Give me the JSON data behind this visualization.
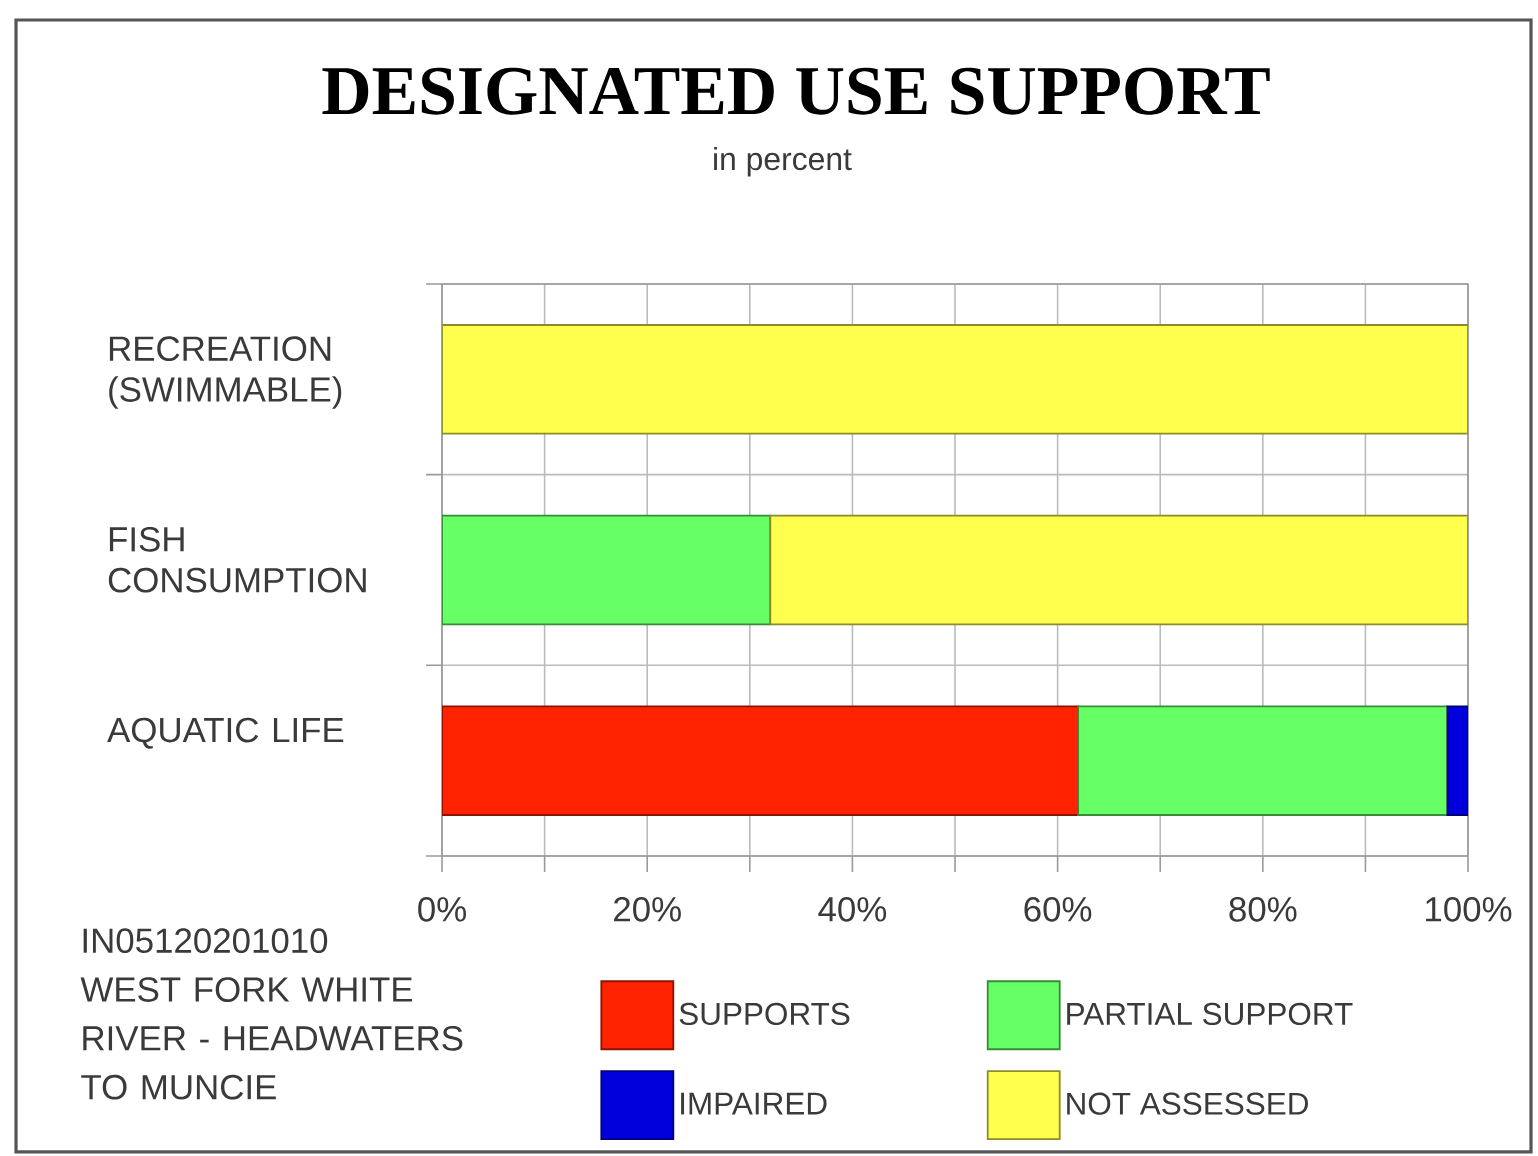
{
  "chart_data": {
    "type": "bar",
    "orientation": "horizontal",
    "stacked": true,
    "title": "DESIGNATED USE SUPPORT",
    "subtitle": "in percent",
    "categories": [
      "RECREATION (SWIMMABLE)",
      "FISH CONSUMPTION",
      "AQUATIC LIFE"
    ],
    "series": [
      {
        "name": "SUPPORTS",
        "color": "#ff2200",
        "values": [
          null,
          null,
          62
        ]
      },
      {
        "name": "PARTIAL SUPPORT",
        "color": "#66ff66",
        "values": [
          null,
          32,
          36
        ]
      },
      {
        "name": "IMPAIRED",
        "color": "#0000dd",
        "values": [
          null,
          null,
          2
        ]
      },
      {
        "name": "NOT ASSESSED",
        "color": "#ffff4d",
        "values": [
          100,
          68,
          null
        ]
      }
    ],
    "xlim": [
      0,
      100
    ],
    "xticks": [
      {
        "value": 0,
        "label": "0%"
      },
      {
        "value": 10,
        "label": null
      },
      {
        "value": 20,
        "label": "20%"
      },
      {
        "value": 30,
        "label": null
      },
      {
        "value": 40,
        "label": "40%"
      },
      {
        "value": 50,
        "label": null
      },
      {
        "value": 60,
        "label": "60%"
      },
      {
        "value": 70,
        "label": null
      },
      {
        "value": 80,
        "label": "80%"
      },
      {
        "value": 90,
        "label": null
      },
      {
        "value": 100,
        "label": "100%"
      }
    ],
    "grid": true,
    "legend": "bottom",
    "annotations": [
      "IN05120201010",
      "WEST FORK WHITE RIVER - HEADWATERS TO MUNCIE"
    ]
  }
}
